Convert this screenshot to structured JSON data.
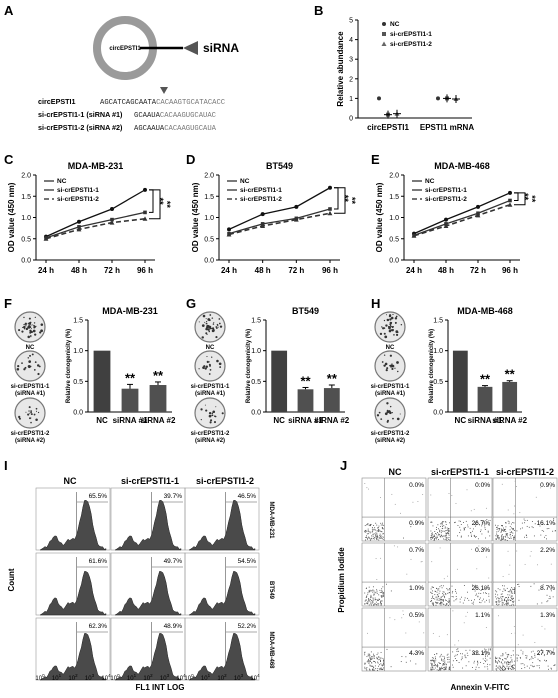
{
  "panels": {
    "A": {
      "letter": "A",
      "circle_label": "circEPSTI1",
      "target_label": "siRNA",
      "rows": [
        {
          "label": "circEPSTI1",
          "seq_a": "AGCATCAGCAATA",
          "seq_b": "CACAAGTGCATACACC"
        },
        {
          "label": "si-crEPSTI1-1 (siRNA #1)",
          "seq_a": "GCAAUA",
          "seq_b": "CACAAGUGCAUAC"
        },
        {
          "label": "si-crEPSTI1-2 (siRNA #2)",
          "seq_a": "AGCAAUA",
          "seq_b": "CACAAGUGCAUA"
        }
      ]
    },
    "B": {
      "letter": "B"
    },
    "C": {
      "letter": "C"
    },
    "D": {
      "letter": "D"
    },
    "E": {
      "letter": "E"
    },
    "F": {
      "letter": "F",
      "dish_labels": [
        "NC",
        "si-crEPSTI1-1 (siRNA #1)",
        "si-crEPSTI1-2 (siRNA #2)"
      ]
    },
    "G": {
      "letter": "G",
      "dish_labels": [
        "NC",
        "si-crEPSTI1-1 (siRNA #1)",
        "si-crEPSTI1-2 (siRNA #2)"
      ]
    },
    "H": {
      "letter": "H",
      "dish_labels": [
        "NC",
        "si-crEPSTI1-1 (siRNA #1)",
        "si-crEPSTI1-2 (siRNA #2)"
      ]
    },
    "I": {
      "letter": "I",
      "ylabel": "Count",
      "xlabel": "FL1 INT LOG",
      "columns": [
        "NC",
        "si-crEPSTI1-1",
        "si-crEPSTI1-2"
      ],
      "rows": [
        "MDA-MB-231",
        "BT549",
        "MDA-MB-468"
      ],
      "ticks": [
        "10",
        "10",
        "10",
        "10",
        "10"
      ],
      "tick_exp": [
        "0",
        "1",
        "2",
        "3",
        "4"
      ]
    },
    "J": {
      "letter": "J",
      "ylabel": "Propidium Iodide",
      "xlabel": "Annexin V-FITC",
      "columns": [
        "NC",
        "si-crEPSTI1-1",
        "si-crEPSTI1-2"
      ]
    }
  },
  "chart_data": [
    {
      "id": "B",
      "type": "scatter",
      "title": "",
      "ylabel": "Relative abundance",
      "ylim": [
        0,
        5
      ],
      "yticks": [
        "0",
        "1",
        "2",
        "3",
        "4",
        "5"
      ],
      "categories": [
        "circEPSTI1",
        "EPSTI1 mRNA"
      ],
      "series": [
        {
          "name": "NC",
          "values": [
            1.0,
            1.0
          ]
        },
        {
          "name": "si-crEPSTI1-1",
          "values": [
            0.17,
            1.0
          ]
        },
        {
          "name": "si-crEPSTI1-2",
          "values": [
            0.22,
            0.97
          ]
        }
      ]
    },
    {
      "id": "C",
      "type": "line",
      "title": "MDA-MB-231",
      "ylabel": "OD value (450 nm)",
      "ylim": [
        0,
        2.0
      ],
      "yticks": [
        "0.0",
        "0.5",
        "1.0",
        "1.5",
        "2.0"
      ],
      "x": [
        "24 h",
        "48 h",
        "72 h",
        "96 h"
      ],
      "series": [
        {
          "name": "NC",
          "values": [
            0.55,
            0.9,
            1.2,
            1.65
          ]
        },
        {
          "name": "si-crEPSTI1-1",
          "values": [
            0.52,
            0.78,
            0.95,
            1.12
          ]
        },
        {
          "name": "si-crEPSTI1-2",
          "values": [
            0.5,
            0.72,
            0.88,
            0.97
          ]
        }
      ],
      "sig": "**"
    },
    {
      "id": "D",
      "type": "line",
      "title": "BT549",
      "ylabel": "OD value (450 nm)",
      "ylim": [
        0,
        2.0
      ],
      "yticks": [
        "0.0",
        "0.5",
        "1.0",
        "1.5",
        "2.0"
      ],
      "x": [
        "24 h",
        "48 h",
        "72 h",
        "96 h"
      ],
      "series": [
        {
          "name": "NC",
          "values": [
            0.72,
            1.08,
            1.25,
            1.7
          ]
        },
        {
          "name": "si-crEPSTI1-1",
          "values": [
            0.62,
            0.85,
            0.98,
            1.2
          ]
        },
        {
          "name": "si-crEPSTI1-2",
          "values": [
            0.6,
            0.8,
            0.95,
            1.1
          ]
        }
      ],
      "sig": "**"
    },
    {
      "id": "E",
      "type": "line",
      "title": "MDA-MB-468",
      "ylabel": "OD value (450 nm)",
      "ylim": [
        0,
        2.0
      ],
      "yticks": [
        "0.0",
        "0.5",
        "1.0",
        "1.5",
        "2.0"
      ],
      "x": [
        "24 h",
        "48 h",
        "72 h",
        "96 h"
      ],
      "series": [
        {
          "name": "NC",
          "values": [
            0.62,
            0.95,
            1.25,
            1.58
          ]
        },
        {
          "name": "si-crEPSTI1-1",
          "values": [
            0.58,
            0.85,
            1.1,
            1.4
          ]
        },
        {
          "name": "si-crEPSTI1-2",
          "values": [
            0.57,
            0.8,
            1.05,
            1.3
          ]
        }
      ],
      "sig": "**"
    },
    {
      "id": "F",
      "type": "bar",
      "title": "MDA-MB-231",
      "ylabel": "Relative clonogenicity (%)",
      "ylim": [
        0,
        1.5
      ],
      "yticks": [
        "0.0",
        "0.5",
        "1.0",
        "1.5"
      ],
      "categories": [
        "NC",
        "siRNA #1",
        "siRNA #2"
      ],
      "values": [
        1.0,
        0.38,
        0.44
      ],
      "errors": [
        0,
        0.07,
        0.05
      ],
      "sig": [
        "",
        "**",
        "**"
      ]
    },
    {
      "id": "G",
      "type": "bar",
      "title": "BT549",
      "ylabel": "Relative clonogenicity (%)",
      "ylim": [
        0,
        1.5
      ],
      "yticks": [
        "0.0",
        "0.5",
        "1.0",
        "1.5"
      ],
      "categories": [
        "NC",
        "siRNA #1",
        "siRNA #2"
      ],
      "values": [
        1.0,
        0.37,
        0.39
      ],
      "errors": [
        0,
        0.03,
        0.05
      ],
      "sig": [
        "",
        "**",
        "**"
      ]
    },
    {
      "id": "H",
      "type": "bar",
      "title": "MDA-MB-468",
      "ylabel": "Relative clonogenicity (%)",
      "ylim": [
        0,
        1.5
      ],
      "yticks": [
        "0.0",
        "0.5",
        "1.0",
        "1.5"
      ],
      "categories": [
        "NC",
        "siRNA #1",
        "siRNA #2"
      ],
      "values": [
        1.0,
        0.41,
        0.49
      ],
      "errors": [
        0,
        0.02,
        0.02
      ],
      "sig": [
        "",
        "**",
        "**"
      ]
    },
    {
      "id": "I",
      "type": "histogram",
      "percentages": [
        [
          "65.5%",
          "39.7%",
          "46.5%"
        ],
        [
          "61.6%",
          "49.7%",
          "54.5%"
        ],
        [
          "62.3%",
          "48.9%",
          "52.2%"
        ]
      ]
    },
    {
      "id": "J",
      "type": "scatter",
      "upper_right": [
        [
          "0.0%",
          "0.0%",
          "0.9%"
        ],
        [
          "0.7%",
          "0.3%",
          "2.2%"
        ],
        [
          "0.5%",
          "1.1%",
          "1.3%"
        ]
      ],
      "lower_right": [
        [
          "0.9%",
          "26.7%",
          "16.1%"
        ],
        [
          "1.0%",
          "26.1%",
          "8.7%"
        ],
        [
          "4.3%",
          "32.1%",
          "27.7%"
        ]
      ]
    }
  ]
}
